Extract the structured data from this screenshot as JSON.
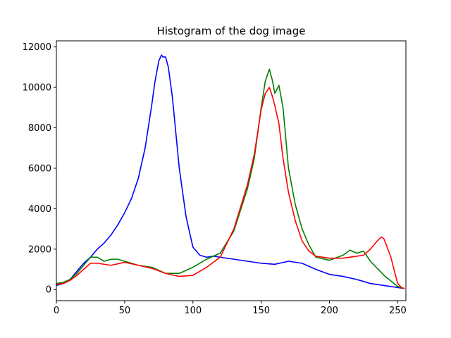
{
  "chart_data": {
    "type": "line",
    "title": "Histogram of the dog image",
    "xlabel": "",
    "ylabel": "",
    "xlim": [
      0,
      256
    ],
    "ylim": [
      -550,
      12300
    ],
    "xticks": [
      0,
      50,
      100,
      150,
      200,
      250
    ],
    "yticks": [
      0,
      2000,
      4000,
      6000,
      8000,
      10000,
      12000
    ],
    "grid": false,
    "series": [
      {
        "color": "#0000ff",
        "x": [
          0,
          5,
          10,
          15,
          20,
          25,
          30,
          35,
          40,
          45,
          50,
          55,
          60,
          65,
          70,
          72,
          75,
          77,
          78,
          80,
          82,
          85,
          90,
          95,
          100,
          105,
          110,
          115,
          120,
          130,
          140,
          150,
          160,
          170,
          180,
          190,
          200,
          210,
          220,
          230,
          240,
          250,
          255
        ],
        "y": [
          200,
          300,
          500,
          900,
          1300,
          1600,
          2000,
          2300,
          2700,
          3200,
          3800,
          4500,
          5500,
          7000,
          9200,
          10200,
          11300,
          11600,
          11500,
          11500,
          11000,
          9500,
          6000,
          3600,
          2100,
          1700,
          1600,
          1650,
          1600,
          1500,
          1400,
          1300,
          1250,
          1400,
          1300,
          1000,
          750,
          650,
          500,
          300,
          200,
          100,
          50
        ]
      },
      {
        "color": "#008000",
        "x": [
          0,
          5,
          10,
          15,
          20,
          25,
          30,
          35,
          40,
          45,
          50,
          55,
          60,
          70,
          80,
          90,
          100,
          110,
          120,
          130,
          140,
          145,
          150,
          153,
          156,
          158,
          160,
          163,
          166,
          170,
          175,
          180,
          185,
          190,
          200,
          210,
          215,
          220,
          225,
          230,
          240,
          250,
          255
        ],
        "y": [
          300,
          350,
          500,
          800,
          1200,
          1600,
          1600,
          1400,
          1500,
          1500,
          1400,
          1300,
          1200,
          1100,
          800,
          800,
          1100,
          1500,
          1800,
          2900,
          5000,
          6500,
          9000,
          10300,
          10900,
          10400,
          9700,
          10100,
          9000,
          6000,
          4200,
          3000,
          2200,
          1600,
          1450,
          1700,
          1950,
          1800,
          1900,
          1400,
          700,
          150,
          50
        ]
      },
      {
        "color": "#ff0000",
        "x": [
          0,
          5,
          10,
          15,
          20,
          25,
          30,
          40,
          50,
          60,
          70,
          80,
          90,
          100,
          110,
          120,
          130,
          140,
          145,
          150,
          153,
          156,
          158,
          160,
          163,
          166,
          170,
          175,
          180,
          185,
          190,
          200,
          210,
          220,
          225,
          230,
          235,
          238,
          240,
          245,
          248,
          250,
          253,
          255
        ],
        "y": [
          250,
          300,
          450,
          700,
          1000,
          1300,
          1300,
          1200,
          1350,
          1200,
          1050,
          800,
          650,
          700,
          1100,
          1600,
          3000,
          5200,
          6700,
          8900,
          9700,
          10000,
          9600,
          9100,
          8200,
          6500,
          4800,
          3400,
          2400,
          1900,
          1650,
          1550,
          1550,
          1650,
          1700,
          2000,
          2400,
          2600,
          2500,
          1600,
          800,
          300,
          80,
          50
        ]
      }
    ]
  }
}
